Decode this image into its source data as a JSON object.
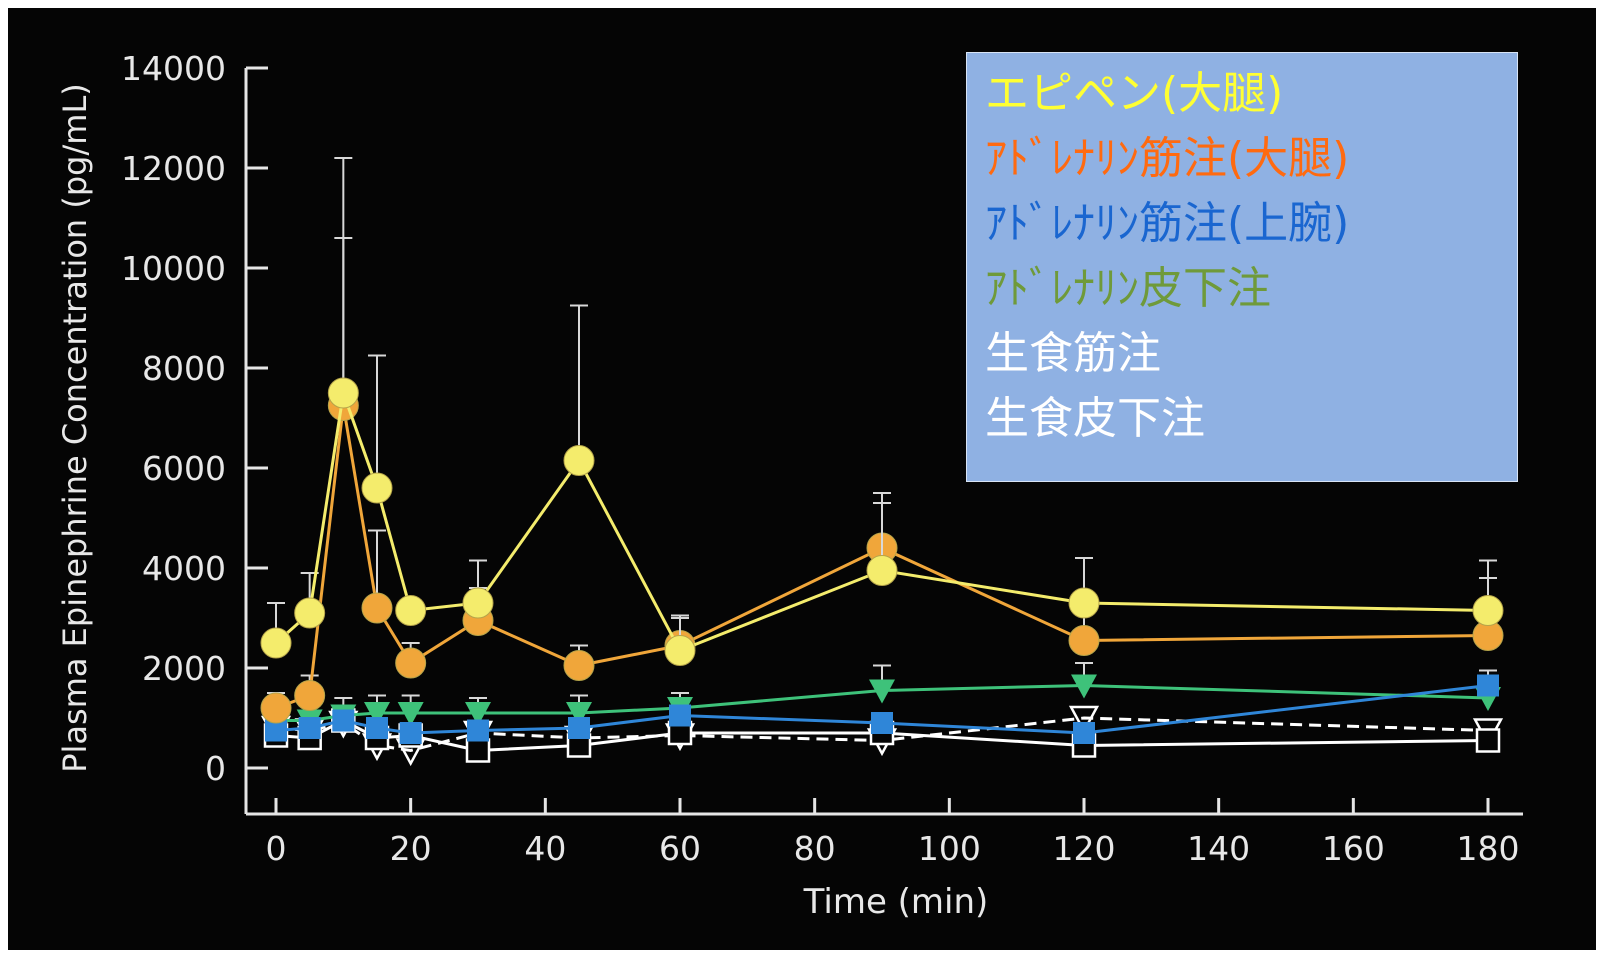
{
  "chart_data": {
    "type": "line",
    "xlabel": "Time (min)",
    "ylabel": "Plasma Epinephrine Concentration (pg/mL)",
    "xlim": [
      -3,
      185
    ],
    "ylim": [
      -400,
      14200
    ],
    "x_ticks": [
      0,
      20,
      40,
      60,
      80,
      100,
      120,
      140,
      160,
      180
    ],
    "y_ticks": [
      0,
      2000,
      4000,
      6000,
      8000,
      10000,
      12000,
      14000
    ],
    "x_tick_labels": [
      "0",
      "20",
      "40",
      "60",
      "80",
      "100",
      "120",
      "140",
      "160",
      "180"
    ],
    "y_tick_labels": [
      "0",
      "2000",
      "4000",
      "6000",
      "8000",
      "10000",
      "12000",
      "14000"
    ],
    "legend_placement": "top-right",
    "series": [
      {
        "name": "エピペン(大腿)",
        "color": "#f4ec6c",
        "marker": "circle",
        "line_style": "solid",
        "x": [
          0,
          5,
          10,
          15,
          20,
          30,
          45,
          60,
          90,
          120,
          180
        ],
        "y": [
          2500,
          3100,
          7500,
          5600,
          3150,
          3300,
          6150,
          2350,
          3950,
          3300,
          3150
        ],
        "error_upper": [
          3300,
          3900,
          12200,
          8250,
          null,
          4150,
          9250,
          3000,
          5300,
          4200,
          4150
        ]
      },
      {
        "name": "ｱﾄﾞﾚﾅﾘﾝ筋注(大腿)",
        "color": "#f0a63a",
        "marker": "circle",
        "line_style": "solid",
        "x": [
          0,
          5,
          10,
          15,
          20,
          30,
          45,
          60,
          90,
          120,
          180
        ],
        "y": [
          1200,
          1450,
          7250,
          3200,
          2100,
          2950,
          2050,
          2450,
          4400,
          2550,
          2650
        ],
        "error_upper": [
          1500,
          1850,
          10600,
          4750,
          2500,
          3600,
          2450,
          3050,
          5500,
          3300,
          3800
        ]
      },
      {
        "name": "ｱﾄﾞﾚﾅﾘﾝ筋注(上腕)",
        "color": "#2f86d8",
        "marker": "square",
        "line_style": "solid",
        "x": [
          0,
          5,
          10,
          15,
          20,
          30,
          45,
          60,
          90,
          120,
          180
        ],
        "y": [
          750,
          800,
          950,
          800,
          700,
          750,
          800,
          1050,
          900,
          700,
          1650
        ],
        "error_upper": [
          900,
          950,
          1150,
          1000,
          850,
          900,
          1000,
          1250,
          1100,
          900,
          1950
        ]
      },
      {
        "name": "ｱﾄﾞﾚﾅﾘﾝ皮下注",
        "color": "#3ec27a",
        "marker": "triangle-down",
        "line_style": "solid",
        "x": [
          0,
          5,
          10,
          15,
          20,
          30,
          45,
          60,
          90,
          120,
          180
        ],
        "y": [
          950,
          950,
          1050,
          1100,
          1100,
          1100,
          1100,
          1200,
          1550,
          1650,
          1400
        ],
        "error_upper": [
          1250,
          1300,
          1400,
          1450,
          1450,
          1400,
          1450,
          1500,
          2050,
          2100,
          null
        ]
      },
      {
        "name": "生食筋注",
        "color": "#ffffff",
        "marker": "open-square",
        "line_style": "solid",
        "x": [
          0,
          5,
          10,
          15,
          20,
          30,
          45,
          60,
          90,
          120,
          180
        ],
        "y": [
          650,
          600,
          950,
          600,
          650,
          350,
          450,
          700,
          700,
          450,
          550
        ]
      },
      {
        "name": "生食皮下注",
        "color": "#ffffff",
        "marker": "open-triangle-down",
        "line_style": "dashed",
        "x": [
          0,
          5,
          10,
          15,
          20,
          30,
          45,
          60,
          90,
          120,
          180
        ],
        "y": [
          800,
          750,
          900,
          450,
          350,
          700,
          600,
          650,
          550,
          1000,
          750
        ]
      }
    ]
  },
  "legend": {
    "items": [
      {
        "label": "エピペン(大腿)",
        "color": "#ffff33"
      },
      {
        "label": "ｱﾄﾞﾚﾅﾘﾝ筋注(大腿)",
        "color": "#ff6a10"
      },
      {
        "label": "ｱﾄﾞﾚﾅﾘﾝ筋注(上腕)",
        "color": "#1a66d0"
      },
      {
        "label": "ｱﾄﾞﾚﾅﾘﾝ皮下注",
        "color": "#6f9a3a"
      },
      {
        "label": "生食筋注",
        "color": "#ffffff"
      },
      {
        "label": "生食皮下注",
        "color": "#ffffff"
      }
    ]
  }
}
